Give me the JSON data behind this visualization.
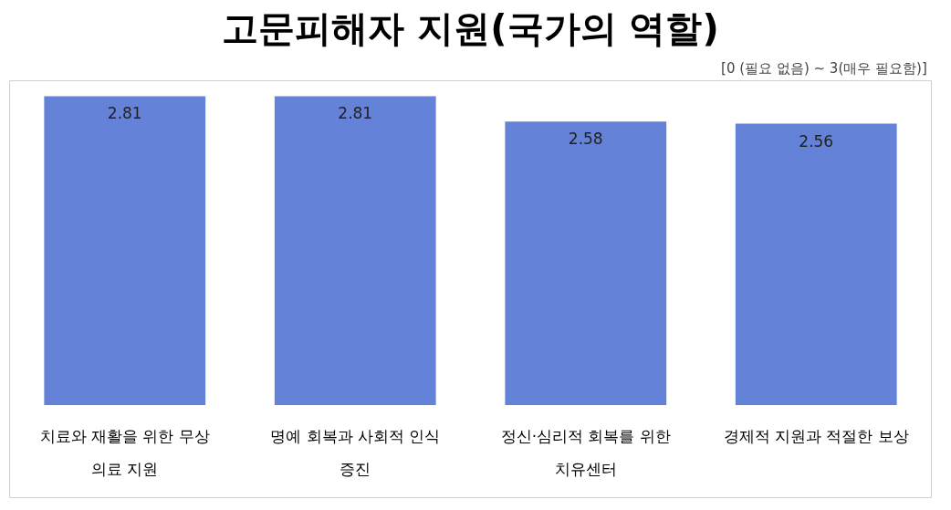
{
  "chart_data": {
    "type": "bar",
    "title": "고문피해자 지원(국가의 역할)",
    "subtitle": "[0 (필요 없음) ~  3(매우 필요함)]",
    "categories": [
      "치료와 재활을 위한 무상 의료 지원",
      "명예 회복과 사회적 인식 증진",
      "정신·심리적 회복를 위한 치유센터",
      "경제적 지원과 적절한 보상"
    ],
    "values": [
      2.81,
      2.81,
      2.58,
      2.56
    ],
    "color": "#6382d8",
    "data_labels": true
  }
}
